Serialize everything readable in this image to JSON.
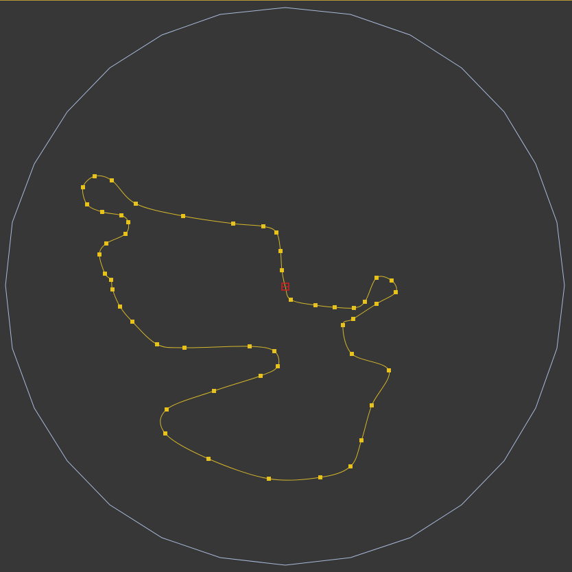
{
  "viewport": {
    "background": "#373737",
    "active_border_color": "#b7993a"
  },
  "boundary": {
    "shape": "polygon-circle",
    "color": "#a9bbdc"
  },
  "spline": {
    "color": "#d6b82a",
    "vertex_color": "#e8c21c"
  },
  "pivot": {
    "name": "first-vertex-marker",
    "color": "#d02020"
  }
}
